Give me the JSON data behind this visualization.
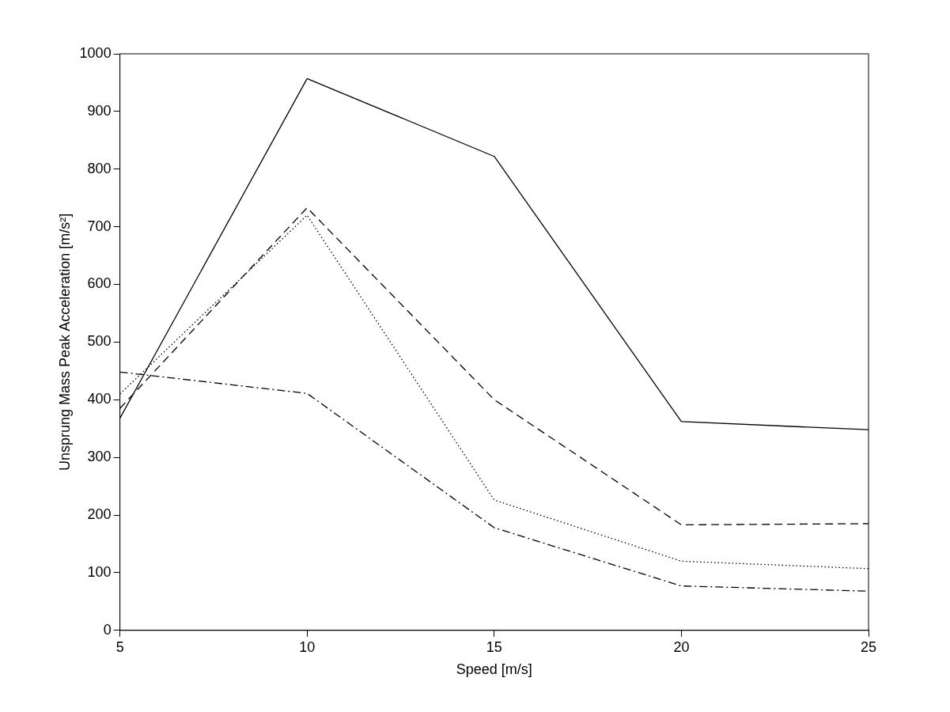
{
  "chart_data": {
    "type": "line",
    "xlabel": "Speed [m/s]",
    "ylabel": "Unsprung Mass Peak Acceleration [m/s²]",
    "x": [
      5,
      10,
      15,
      20,
      25
    ],
    "xlim": [
      5,
      25
    ],
    "xticks": [
      5,
      10,
      15,
      20,
      25
    ],
    "ylim": [
      0,
      1000
    ],
    "yticks": [
      0,
      100,
      200,
      300,
      400,
      500,
      600,
      700,
      800,
      900,
      1000
    ],
    "grid": false,
    "legend": false,
    "marker": "none",
    "series": [
      {
        "color": "#000000",
        "line_style": "solid",
        "values": [
          368,
          957,
          822,
          362,
          348
        ]
      },
      {
        "color": "#000000",
        "line_style": "dashed",
        "values": [
          385,
          733,
          400,
          183,
          185
        ]
      },
      {
        "color": "#000000",
        "line_style": "dotted",
        "values": [
          410,
          720,
          226,
          120,
          107
        ]
      },
      {
        "color": "#000000",
        "line_style": "dashdot",
        "values": [
          448,
          411,
          178,
          77,
          68
        ]
      }
    ]
  }
}
